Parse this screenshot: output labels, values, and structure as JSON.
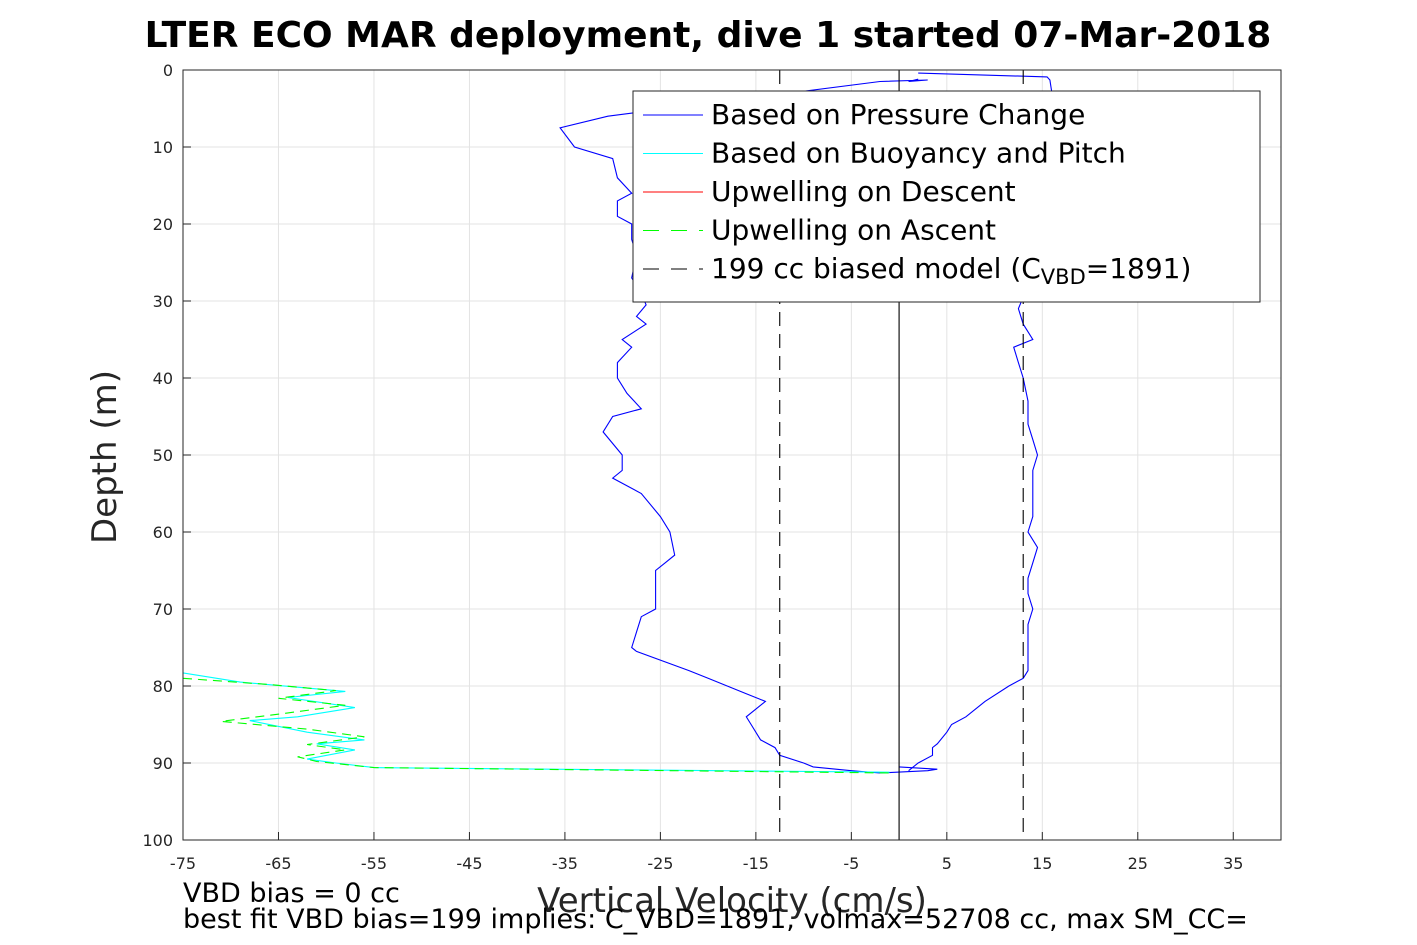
{
  "chart_data": {
    "type": "line",
    "title": "LTER ECO MAR deployment, dive 1 started 07-Mar-2018",
    "xlabel": "Vertical Velocity (cm/s)",
    "ylabel": "Depth (m)",
    "xlim": [
      -75,
      40
    ],
    "ylim": [
      0,
      100
    ],
    "y_reversed": true,
    "grid": true,
    "x_ticks": [
      -75,
      -65,
      -55,
      -45,
      -35,
      -25,
      -15,
      -5,
      5,
      15,
      25,
      35
    ],
    "y_ticks": [
      0,
      10,
      20,
      30,
      40,
      50,
      60,
      70,
      80,
      90,
      100
    ],
    "legend_placement": "top-right",
    "legend": [
      {
        "label": "Based on Pressure Change",
        "color": "#0000ff",
        "dash": "solid"
      },
      {
        "label": "Based on Buoyancy and Pitch",
        "color": "#00ffff",
        "dash": "solid"
      },
      {
        "label": "Upwelling on Descent",
        "color": "#ff0000",
        "dash": "solid"
      },
      {
        "label": "Upwelling on Ascent",
        "color": "#00ff00",
        "dash": "dashed"
      },
      {
        "label_main": "199 cc biased model (C",
        "label_sub": "VBD",
        "label_tail": "=1891)",
        "color": "#000000",
        "dash": "dashed"
      }
    ],
    "series": [
      {
        "name": "Based on Pressure Change",
        "color": "#0000ff",
        "dash": "solid",
        "segments": [
          [
            [
              2,
              1.2
            ],
            [
              1,
              1.5
            ],
            [
              3,
              1.3
            ],
            [
              -2,
              1.5
            ],
            [
              -30.5,
              6
            ],
            [
              -35.5,
              7.5
            ],
            [
              -34,
              10
            ],
            [
              -30,
              11.5
            ],
            [
              -29.5,
              14
            ],
            [
              -28,
              16
            ],
            [
              -29.5,
              17
            ],
            [
              -29.5,
              19
            ],
            [
              -28,
              20
            ],
            [
              -28,
              22
            ],
            [
              -27.5,
              24
            ],
            [
              -28,
              27
            ],
            [
              -27,
              29
            ],
            [
              -26.5,
              30.5
            ],
            [
              -27.5,
              32
            ],
            [
              -26.5,
              33
            ],
            [
              -29,
              35
            ],
            [
              -28,
              36
            ],
            [
              -29.5,
              38
            ],
            [
              -29.5,
              40
            ],
            [
              -28.5,
              42
            ],
            [
              -27,
              44
            ],
            [
              -30,
              45
            ],
            [
              -31,
              47
            ],
            [
              -29,
              50
            ],
            [
              -29,
              52
            ],
            [
              -30,
              53
            ],
            [
              -27,
              55
            ],
            [
              -25,
              58
            ],
            [
              -24,
              60
            ],
            [
              -23.5,
              63
            ],
            [
              -24.5,
              64
            ],
            [
              -25.5,
              65
            ],
            [
              -25.5,
              68
            ],
            [
              -25.5,
              70
            ],
            [
              -27,
              71
            ],
            [
              -27.5,
              73
            ],
            [
              -28,
              75
            ],
            [
              -27.5,
              75.5
            ],
            [
              -22,
              78
            ],
            [
              -20,
              79
            ],
            [
              -16,
              81
            ],
            [
              -14,
              82
            ],
            [
              -15,
              83
            ],
            [
              -16,
              84
            ],
            [
              -15.5,
              85
            ],
            [
              -14.5,
              87
            ],
            [
              -13,
              88
            ],
            [
              -12.5,
              89
            ],
            [
              -10,
              90
            ],
            [
              -9,
              90.5
            ],
            [
              -5,
              91
            ],
            [
              -2,
              91.3
            ],
            [
              3,
              91
            ],
            [
              4,
              90.8
            ],
            [
              0,
              90.5
            ]
          ],
          [
            [
              2,
              0.4
            ],
            [
              15.5,
              0.9
            ],
            [
              15.8,
              1.3
            ],
            [
              16,
              3
            ],
            [
              16,
              5
            ],
            [
              15,
              7
            ],
            [
              13.5,
              9
            ],
            [
              13.5,
              15
            ],
            [
              13.5,
              22
            ],
            [
              13.5,
              28
            ],
            [
              12.5,
              31
            ],
            [
              13,
              33
            ],
            [
              14,
              35
            ],
            [
              12,
              36
            ],
            [
              12.5,
              38
            ],
            [
              13,
              40
            ],
            [
              13.5,
              43
            ],
            [
              13.5,
              46
            ],
            [
              14,
              48
            ],
            [
              14.5,
              50
            ],
            [
              14,
              52
            ],
            [
              14,
              55
            ],
            [
              14,
              58
            ],
            [
              13.5,
              60
            ],
            [
              14.5,
              62
            ],
            [
              14,
              64
            ],
            [
              13.5,
              66
            ],
            [
              13.5,
              68
            ],
            [
              14,
              70
            ],
            [
              13.5,
              72
            ],
            [
              13.5,
              74
            ],
            [
              13.5,
              76
            ],
            [
              13.5,
              78
            ],
            [
              13,
              79
            ],
            [
              11.5,
              80
            ],
            [
              9,
              82
            ],
            [
              7,
              84
            ],
            [
              5.5,
              85
            ],
            [
              5,
              86
            ],
            [
              4,
              87.5
            ],
            [
              3.5,
              88
            ],
            [
              3.5,
              89
            ],
            [
              2,
              90
            ],
            [
              1,
              91
            ]
          ]
        ]
      },
      {
        "name": "Based on Buoyancy and Pitch",
        "color": "#00ffff",
        "dash": "solid",
        "segments": [
          [
            [
              -75,
              78.3
            ],
            [
              -69,
              79.5
            ],
            [
              -58,
              80.7
            ],
            [
              -64,
              81.5
            ],
            [
              -57,
              82.8
            ],
            [
              -63,
              84
            ],
            [
              -68,
              84.5
            ],
            [
              -62,
              86
            ],
            [
              -56,
              87
            ],
            [
              -61,
              87.5
            ],
            [
              -57,
              88.3
            ],
            [
              -62,
              89.5
            ],
            [
              -59,
              90
            ],
            [
              -55,
              90.6
            ],
            [
              -1,
              91.2
            ]
          ]
        ]
      },
      {
        "name": "Upwelling on Ascent",
        "color": "#00ff00",
        "dash": "dashed",
        "segments": [
          [
            [
              -75,
              79
            ],
            [
              -66,
              79.8
            ],
            [
              -59,
              80.6
            ],
            [
              -65,
              81.6
            ],
            [
              -58,
              82.5
            ],
            [
              -64,
              83.5
            ],
            [
              -71,
              84.6
            ],
            [
              -62,
              85.6
            ],
            [
              -56,
              86.6
            ],
            [
              -62,
              87.6
            ],
            [
              -58,
              88.3
            ],
            [
              -63,
              89.2
            ],
            [
              -61,
              89.8
            ],
            [
              -55,
              90.6
            ],
            [
              -0.5,
              91.3
            ]
          ]
        ]
      }
    ],
    "reference_lines": [
      {
        "x": -12.5,
        "color": "#000000",
        "dash": "dashed"
      },
      {
        "x": 13,
        "color": "#000000",
        "dash": "dashed"
      },
      {
        "x": 0,
        "color": "#000000",
        "dash": "solid"
      }
    ],
    "annotations": [
      "VBD bias = 0 cc",
      "best fit VBD bias=199 implies: C_VBD=1891, volmax=52708 cc, max SM_CC="
    ]
  }
}
